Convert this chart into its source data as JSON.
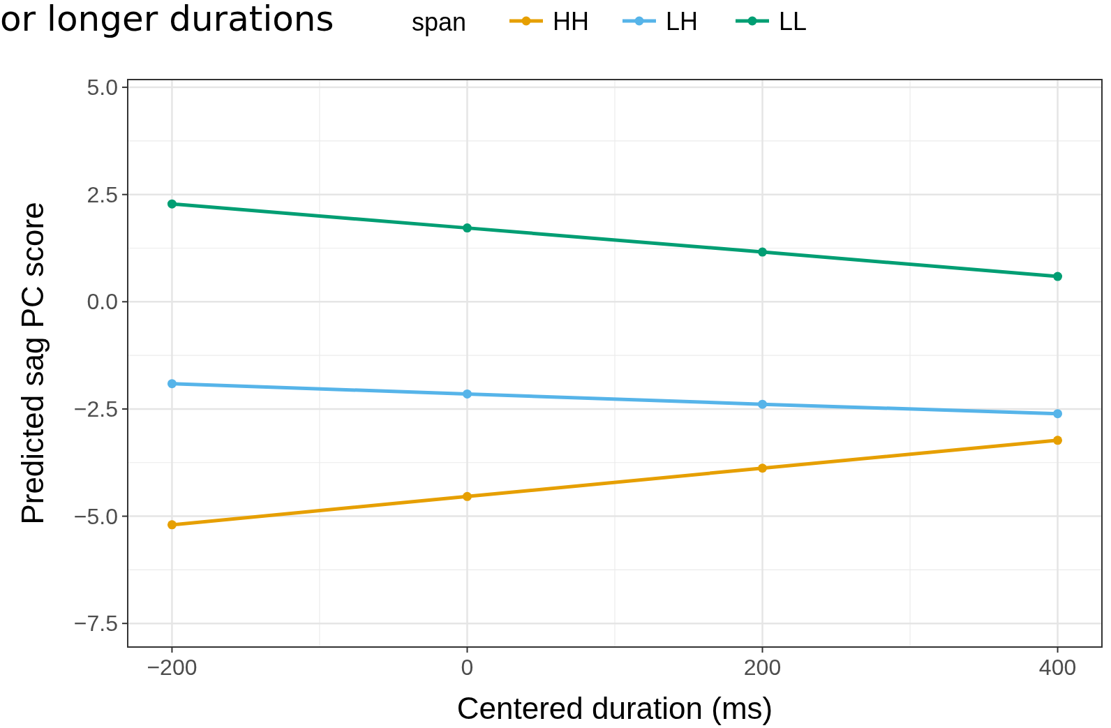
{
  "chart_data": {
    "type": "line",
    "title": "or longer durations",
    "xlabel": "Centered duration (ms)",
    "ylabel": "Predicted sag PC score",
    "legend_title": "span",
    "x": [
      -200,
      0,
      200,
      400
    ],
    "series": [
      {
        "name": "HH",
        "color": "#e69f00",
        "values": [
          -5.2,
          -4.54,
          -3.88,
          -3.23
        ]
      },
      {
        "name": "LH",
        "color": "#56b4e9",
        "values": [
          -1.91,
          -2.15,
          -2.39,
          -2.61
        ]
      },
      {
        "name": "LL",
        "color": "#009e73",
        "values": [
          2.28,
          1.72,
          1.16,
          0.59
        ]
      }
    ],
    "xlim": [
      -230,
      430
    ],
    "ylim": [
      -8.05,
      5.18
    ],
    "xticks": [
      {
        "value": -200,
        "label": "−200"
      },
      0,
      200,
      400
    ],
    "yticks": [
      {
        "value": -7.5,
        "label": "−7.5"
      },
      {
        "value": -5,
        "label": "−5.0"
      },
      {
        "value": -2.5,
        "label": "−2.5"
      },
      {
        "value": 0,
        "label": "0.0"
      },
      {
        "value": 2.5,
        "label": "2.5"
      },
      {
        "value": 5,
        "label": "5.0"
      }
    ],
    "grid": true,
    "legend": "top",
    "marker": "circle",
    "line_style": "solid"
  }
}
